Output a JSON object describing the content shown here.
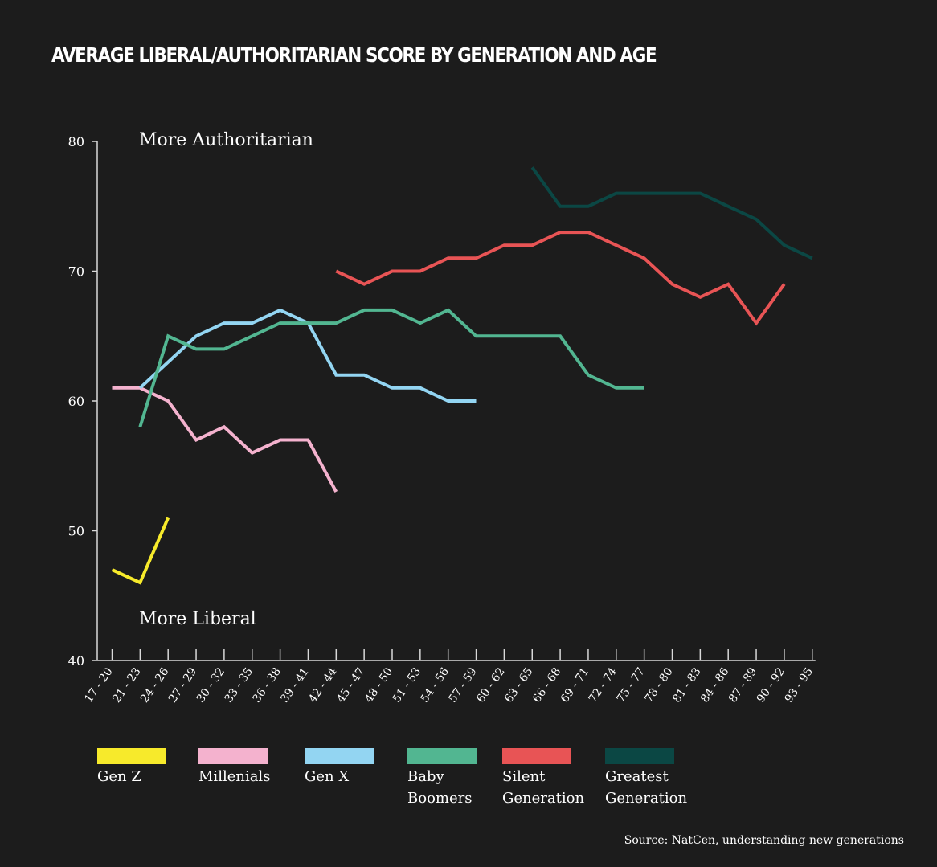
{
  "chart_data": {
    "type": "line",
    "title": "AVERAGE LIBERAL/AUTHORITARIAN SCORE BY GENERATION AND AGE",
    "xlabel": "",
    "ylabel": "",
    "ylim": [
      40,
      80
    ],
    "yticks": [
      40,
      50,
      60,
      70,
      80
    ],
    "categories": [
      "17 - 20",
      "21 - 23",
      "24 - 26",
      "27 - 29",
      "30 - 32",
      "33 - 35",
      "36 - 38",
      "39 - 41",
      "42 - 44",
      "45 - 47",
      "48 - 50",
      "51 - 53",
      "54 - 56",
      "57 - 59",
      "60 - 62",
      "63 - 65",
      "66 - 68",
      "69 - 71",
      "72 - 74",
      "75 - 77",
      "78 - 80",
      "81 - 83",
      "84 - 86",
      "87 - 89",
      "90 - 92",
      "93 - 95"
    ],
    "annotations": {
      "top": "More Authoritarian",
      "bottom": "More Liberal"
    },
    "series": [
      {
        "name": "Gen Z",
        "label_lines": [
          "Gen Z"
        ],
        "color": "#f7ea2b",
        "points": [
          [
            0,
            47
          ],
          [
            1,
            46
          ],
          [
            2,
            51
          ]
        ]
      },
      {
        "name": "Millenials",
        "label_lines": [
          "Millenials"
        ],
        "color": "#f4b2ce",
        "points": [
          [
            0,
            61
          ],
          [
            1,
            61
          ],
          [
            2,
            60
          ],
          [
            3,
            57
          ],
          [
            4,
            58
          ],
          [
            5,
            56
          ],
          [
            6,
            57
          ],
          [
            7,
            57
          ],
          [
            8,
            53
          ]
        ]
      },
      {
        "name": "Gen X",
        "label_lines": [
          "Gen X"
        ],
        "color": "#93d5f2",
        "points": [
          [
            1,
            61
          ],
          [
            2,
            63
          ],
          [
            3,
            65
          ],
          [
            4,
            66
          ],
          [
            5,
            66
          ],
          [
            6,
            67
          ],
          [
            7,
            66
          ],
          [
            8,
            62
          ],
          [
            9,
            62
          ],
          [
            10,
            61
          ],
          [
            11,
            61
          ],
          [
            12,
            60
          ],
          [
            13,
            60
          ]
        ]
      },
      {
        "name": "Baby Boomers",
        "label_lines": [
          "Baby",
          "Boomers"
        ],
        "color": "#52b691",
        "points": [
          [
            1,
            58
          ],
          [
            2,
            65
          ],
          [
            3,
            64
          ],
          [
            4,
            64
          ],
          [
            5,
            65
          ],
          [
            6,
            66
          ],
          [
            7,
            66
          ],
          [
            8,
            66
          ],
          [
            9,
            67
          ],
          [
            10,
            67
          ],
          [
            11,
            66
          ],
          [
            12,
            67
          ],
          [
            13,
            65
          ],
          [
            14,
            65
          ],
          [
            15,
            65
          ],
          [
            16,
            65
          ],
          [
            17,
            62
          ],
          [
            18,
            61
          ],
          [
            19,
            61
          ]
        ]
      },
      {
        "name": "Silent Generation",
        "label_lines": [
          "Silent",
          "Generation"
        ],
        "color": "#e85455",
        "points": [
          [
            8,
            70
          ],
          [
            9,
            69
          ],
          [
            10,
            70
          ],
          [
            11,
            70
          ],
          [
            12,
            71
          ],
          [
            13,
            71
          ],
          [
            14,
            72
          ],
          [
            15,
            72
          ],
          [
            16,
            73
          ],
          [
            17,
            73
          ],
          [
            18,
            72
          ],
          [
            19,
            71
          ],
          [
            20,
            69
          ],
          [
            21,
            68
          ],
          [
            22,
            69
          ],
          [
            23,
            66
          ],
          [
            24,
            69
          ]
        ]
      },
      {
        "name": "Greatest Generation",
        "label_lines": [
          "Greatest",
          "Generation"
        ],
        "color": "#0b4744",
        "points": [
          [
            15,
            78
          ],
          [
            16,
            75
          ],
          [
            17,
            75
          ],
          [
            18,
            76
          ],
          [
            19,
            76
          ],
          [
            20,
            76
          ],
          [
            21,
            76
          ],
          [
            22,
            75
          ],
          [
            23,
            74
          ],
          [
            24,
            72
          ],
          [
            25,
            71
          ]
        ]
      }
    ],
    "source": "Source: NatCen, understanding new generations"
  }
}
